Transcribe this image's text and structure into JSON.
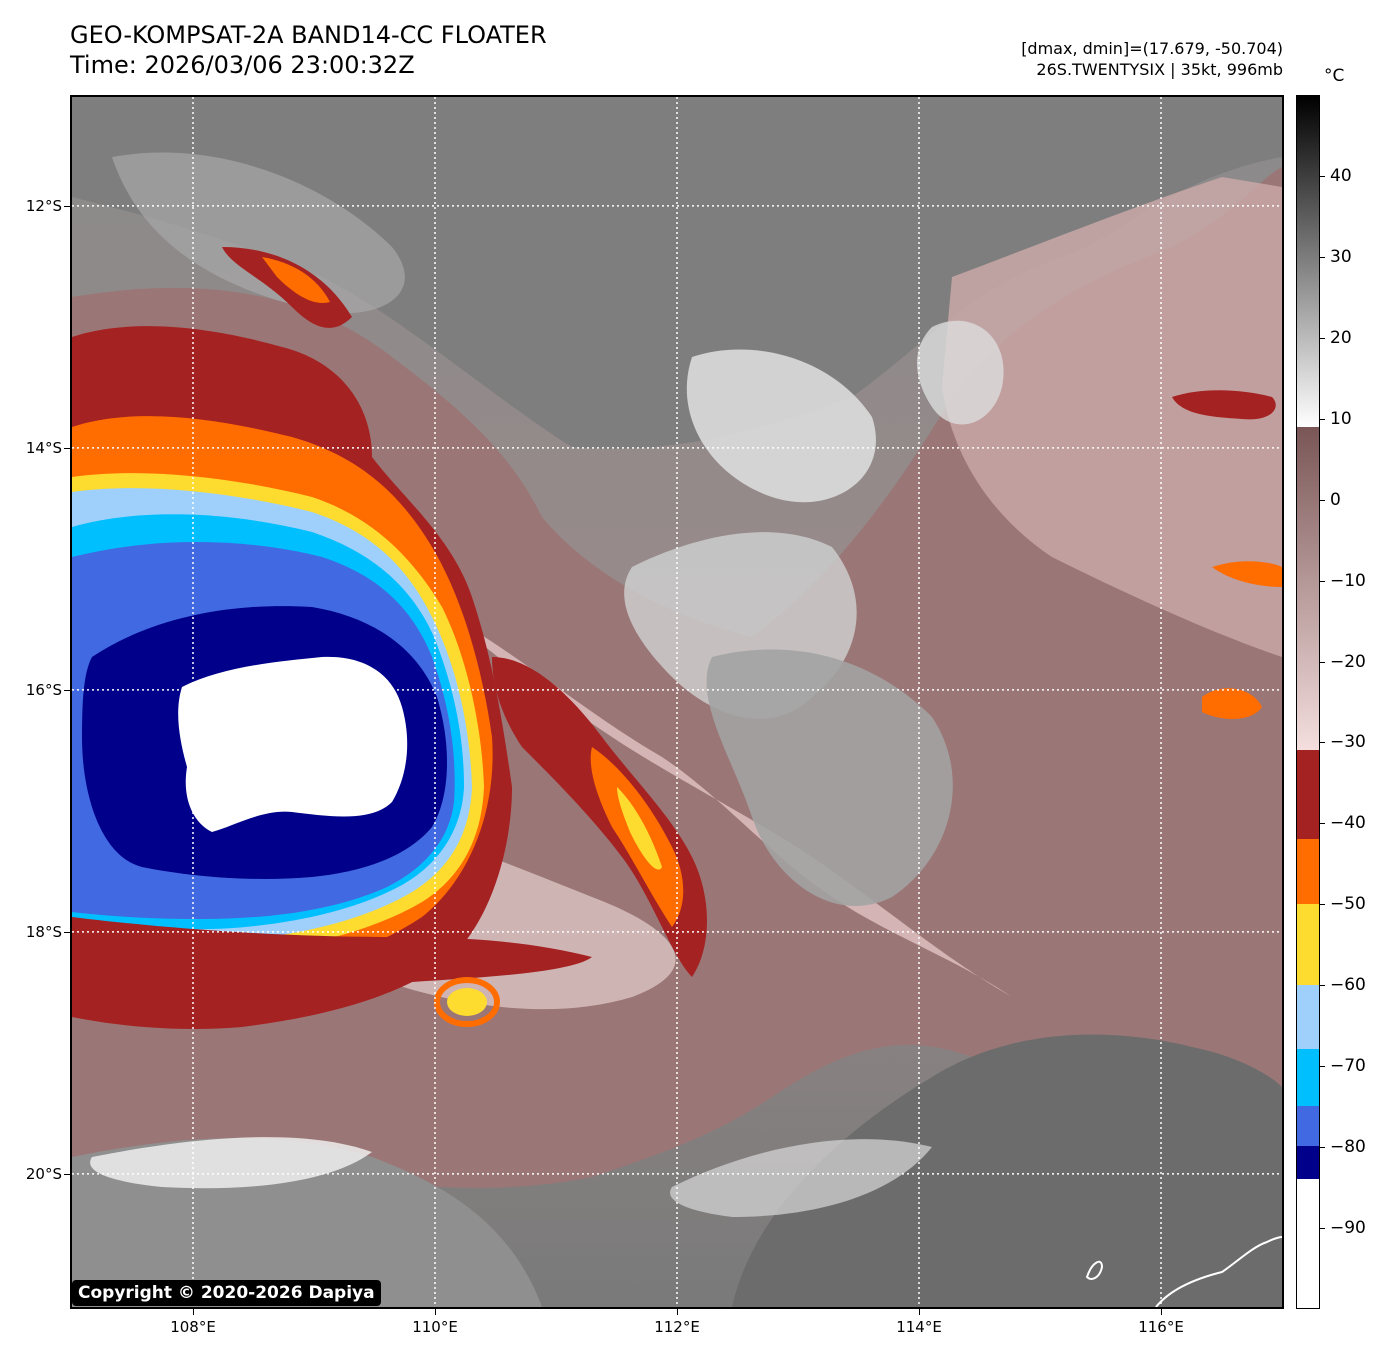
{
  "title": {
    "line1": "GEO-KOMPSAT-2A BAND14-CC FLOATER",
    "line2": "Time: 2026/03/06 23:00:32Z"
  },
  "meta": {
    "dminmax": "[dmax, dmin]=(17.679, -50.704)",
    "storm": "26S.TWENTYSIX | 35kt, 996mb"
  },
  "copyright": "Copyright © 2020-2026 Dapiya",
  "map": {
    "lon_range": [
      107.0,
      117.0
    ],
    "lat_range": [
      -21.1,
      -11.1
    ],
    "lat_ticks": [
      {
        "value": -12,
        "label": "12°S"
      },
      {
        "value": -14,
        "label": "14°S"
      },
      {
        "value": -16,
        "label": "16°S"
      },
      {
        "value": -18,
        "label": "18°S"
      },
      {
        "value": -20,
        "label": "20°S"
      }
    ],
    "lon_ticks": [
      {
        "value": 108,
        "label": "108°E"
      },
      {
        "value": 110,
        "label": "110°E"
      },
      {
        "value": 112,
        "label": "112°E"
      },
      {
        "value": 114,
        "label": "114°E"
      },
      {
        "value": 116,
        "label": "116°E"
      }
    ],
    "grid": true
  },
  "colorbar": {
    "unit": "°C",
    "range": [
      -100,
      50
    ],
    "ticks": [
      {
        "value": 40,
        "label": "40"
      },
      {
        "value": 30,
        "label": "30"
      },
      {
        "value": 20,
        "label": "20"
      },
      {
        "value": 10,
        "label": "10"
      },
      {
        "value": 0,
        "label": "0"
      },
      {
        "value": -10,
        "label": "−10"
      },
      {
        "value": -20,
        "label": "−20"
      },
      {
        "value": -30,
        "label": "−30"
      },
      {
        "value": -40,
        "label": "−40"
      },
      {
        "value": -50,
        "label": "−50"
      },
      {
        "value": -60,
        "label": "−60"
      },
      {
        "value": -70,
        "label": "−70"
      },
      {
        "value": -80,
        "label": "−80"
      },
      {
        "value": -90,
        "label": "−90"
      }
    ],
    "segments": [
      {
        "from": 9,
        "to": 50,
        "type": "gradient",
        "colors": [
          "#ffffff",
          "#000000"
        ]
      },
      {
        "from": -31,
        "to": 9,
        "type": "gradient",
        "colors": [
          "#f4dede",
          "#7a5656"
        ]
      },
      {
        "from": -42,
        "to": -31,
        "type": "solid",
        "colors": [
          "#a52222"
        ]
      },
      {
        "from": -50,
        "to": -42,
        "type": "solid",
        "colors": [
          "#ff6c00"
        ]
      },
      {
        "from": -60,
        "to": -50,
        "type": "solid",
        "colors": [
          "#fddc2f"
        ]
      },
      {
        "from": -68,
        "to": -60,
        "type": "solid",
        "colors": [
          "#9ed0fb"
        ]
      },
      {
        "from": -75,
        "to": -68,
        "type": "solid",
        "colors": [
          "#00bfff"
        ]
      },
      {
        "from": -80,
        "to": -75,
        "type": "solid",
        "colors": [
          "#4169e1"
        ]
      },
      {
        "from": -84,
        "to": -80,
        "type": "solid",
        "colors": [
          "#00008b"
        ]
      },
      {
        "from": -100,
        "to": -84,
        "type": "solid",
        "colors": [
          "#ffffff"
        ]
      }
    ]
  }
}
